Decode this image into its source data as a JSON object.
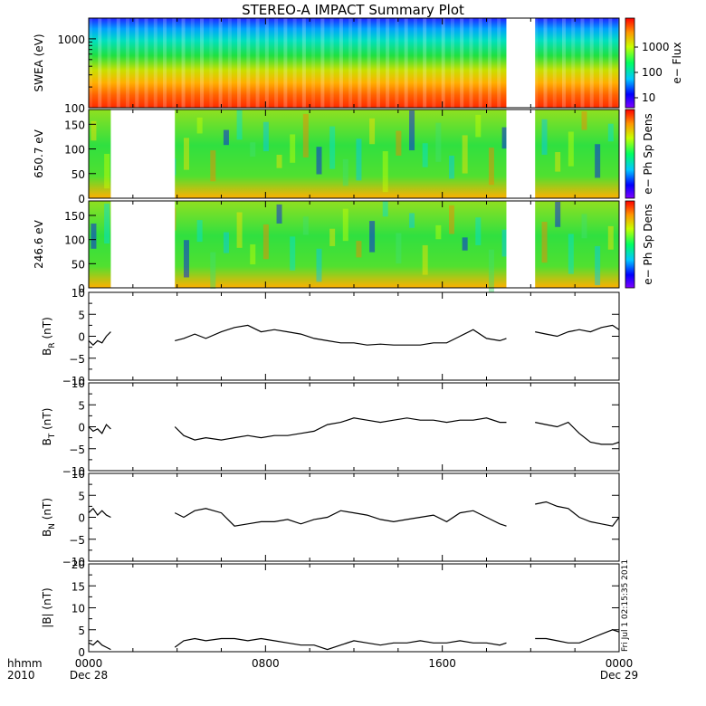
{
  "title": "STEREO-A IMPACT Summary Plot",
  "x_axis": {
    "corner_labels": [
      "hhmm",
      "2010"
    ],
    "tick_labels": [
      {
        "time": "0000",
        "date": "Dec 28"
      },
      {
        "time": "0800",
        "date": ""
      },
      {
        "time": "1600",
        "date": ""
      },
      {
        "time": "0000",
        "date": "Dec 29"
      }
    ]
  },
  "side_stamp": "Fri Jul 1 02:15:35 2011",
  "colors": {
    "line": "#000000",
    "gap": "#ffffff",
    "colormap": "rainbow"
  },
  "chart_data": [
    {
      "type": "heatmap",
      "ylabel": "SWEA (eV)",
      "yscale": "log",
      "ylim": [
        100,
        2000
      ],
      "yticks": [
        "100",
        "1000"
      ],
      "colorbar": {
        "label": "e− Flux",
        "scale": "log",
        "ticks": [
          "10",
          "100",
          "1000"
        ]
      },
      "time_range_hours": [
        0,
        24
      ],
      "data_gaps_hours": [
        [
          18.9,
          20.2
        ]
      ],
      "trend": "flux decreases with energy: ~3000 near 100 eV down to ~10 near 2000 eV"
    },
    {
      "type": "heatmap",
      "ylabel": "650.7 eV",
      "ylim": [
        0,
        180
      ],
      "yticks": [
        "0",
        "50",
        "100",
        "150"
      ],
      "colorbar": {
        "label": "e− Ph Sp Dens"
      },
      "time_range_hours": [
        0,
        24
      ],
      "data_gaps_hours": [
        [
          1.0,
          3.9
        ],
        [
          18.9,
          20.2
        ]
      ]
    },
    {
      "type": "heatmap",
      "ylabel": "246.6 eV",
      "ylim": [
        0,
        180
      ],
      "yticks": [
        "0",
        "50",
        "100",
        "150"
      ],
      "colorbar": {
        "label": "e− Ph Sp Dens"
      },
      "time_range_hours": [
        0,
        24
      ],
      "data_gaps_hours": [
        [
          1.0,
          3.9
        ],
        [
          18.9,
          20.2
        ]
      ]
    },
    {
      "type": "line",
      "ylabel": "B",
      "ylabel_sub": "R",
      "ylabel_unit": " (nT)",
      "ylim": [
        -10,
        10
      ],
      "yticks": [
        "−10",
        "−5",
        "0",
        "5",
        "10"
      ],
      "segments": [
        {
          "x": [
            0.0,
            0.2,
            0.4,
            0.6,
            0.8,
            1.0
          ],
          "y": [
            -1.0,
            -2.0,
            -1.0,
            -1.5,
            0.0,
            1.0
          ]
        },
        {
          "x": [
            3.9,
            4.3,
            4.8,
            5.3,
            6.0,
            6.6,
            7.2,
            7.8,
            8.4,
            9.0,
            9.6,
            10.2,
            10.8,
            11.4,
            12.0,
            12.6,
            13.2,
            13.8,
            14.4,
            15.0,
            15.6,
            16.2,
            16.8,
            17.4,
            18.0,
            18.6,
            18.9
          ],
          "y": [
            -1.0,
            -0.5,
            0.5,
            -0.5,
            1.0,
            2.0,
            2.5,
            1.0,
            1.5,
            1.0,
            0.5,
            -0.5,
            -1.0,
            -1.5,
            -1.5,
            -2.0,
            -1.8,
            -2.0,
            -2.0,
            -2.0,
            -1.5,
            -1.5,
            0.0,
            1.5,
            -0.5,
            -1.0,
            -0.5
          ]
        },
        {
          "x": [
            20.2,
            20.7,
            21.2,
            21.7,
            22.2,
            22.7,
            23.2,
            23.7,
            24.0
          ],
          "y": [
            1.0,
            0.5,
            0.0,
            1.0,
            1.5,
            1.0,
            2.0,
            2.5,
            1.5
          ]
        }
      ]
    },
    {
      "type": "line",
      "ylabel": "B",
      "ylabel_sub": "T",
      "ylabel_unit": " (nT)",
      "ylim": [
        -10,
        10
      ],
      "yticks": [
        "−10",
        "−5",
        "0",
        "5",
        "10"
      ],
      "segments": [
        {
          "x": [
            0.0,
            0.2,
            0.4,
            0.6,
            0.8,
            1.0
          ],
          "y": [
            0.0,
            -1.0,
            -0.5,
            -1.5,
            0.5,
            -0.5
          ]
        },
        {
          "x": [
            3.9,
            4.3,
            4.8,
            5.3,
            6.0,
            6.6,
            7.2,
            7.8,
            8.4,
            9.0,
            9.6,
            10.2,
            10.8,
            11.4,
            12.0,
            12.6,
            13.2,
            13.8,
            14.4,
            15.0,
            15.6,
            16.2,
            16.8,
            17.4,
            18.0,
            18.6,
            18.9
          ],
          "y": [
            0.0,
            -2.0,
            -3.0,
            -2.5,
            -3.0,
            -2.5,
            -2.0,
            -2.5,
            -2.0,
            -2.0,
            -1.5,
            -1.0,
            0.5,
            1.0,
            2.0,
            1.5,
            1.0,
            1.5,
            2.0,
            1.5,
            1.5,
            1.0,
            1.5,
            1.5,
            2.0,
            1.0,
            1.0
          ]
        },
        {
          "x": [
            20.2,
            20.7,
            21.2,
            21.7,
            22.2,
            22.7,
            23.2,
            23.7,
            24.0
          ],
          "y": [
            1.0,
            0.5,
            0.0,
            1.0,
            -1.5,
            -3.5,
            -4.0,
            -4.0,
            -3.5
          ]
        }
      ]
    },
    {
      "type": "line",
      "ylabel": "B",
      "ylabel_sub": "N",
      "ylabel_unit": " (nT)",
      "ylim": [
        -10,
        10
      ],
      "yticks": [
        "−10",
        "−5",
        "0",
        "5",
        "10"
      ],
      "segments": [
        {
          "x": [
            0.0,
            0.2,
            0.4,
            0.6,
            0.8,
            1.0
          ],
          "y": [
            1.0,
            2.0,
            0.5,
            1.5,
            0.5,
            0.0
          ]
        },
        {
          "x": [
            3.9,
            4.3,
            4.8,
            5.3,
            6.0,
            6.6,
            7.2,
            7.8,
            8.4,
            9.0,
            9.6,
            10.2,
            10.8,
            11.4,
            12.0,
            12.6,
            13.2,
            13.8,
            14.4,
            15.0,
            15.6,
            16.2,
            16.8,
            17.4,
            18.0,
            18.6,
            18.9
          ],
          "y": [
            1.0,
            0.0,
            1.5,
            2.0,
            1.0,
            -2.0,
            -1.5,
            -1.0,
            -1.0,
            -0.5,
            -1.5,
            -0.5,
            0.0,
            1.5,
            1.0,
            0.5,
            -0.5,
            -1.0,
            -0.5,
            0.0,
            0.5,
            -1.0,
            1.0,
            1.5,
            0.0,
            -1.5,
            -2.0
          ]
        },
        {
          "x": [
            20.2,
            20.7,
            21.2,
            21.7,
            22.2,
            22.7,
            23.2,
            23.7,
            24.0
          ],
          "y": [
            3.0,
            3.5,
            2.5,
            2.0,
            0.0,
            -1.0,
            -1.5,
            -2.0,
            0.0
          ]
        }
      ]
    },
    {
      "type": "line",
      "ylabel": "|B|",
      "ylabel_sub": "",
      "ylabel_unit": " (nT)",
      "ylim": [
        0,
        20
      ],
      "yticks": [
        "0",
        "5",
        "10",
        "15",
        "20"
      ],
      "segments": [
        {
          "x": [
            0.0,
            0.2,
            0.4,
            0.6,
            0.8,
            1.0
          ],
          "y": [
            2.0,
            1.5,
            2.5,
            1.5,
            1.0,
            0.5
          ]
        },
        {
          "x": [
            3.9,
            4.3,
            4.8,
            5.3,
            6.0,
            6.6,
            7.2,
            7.8,
            8.4,
            9.0,
            9.6,
            10.2,
            10.8,
            11.4,
            12.0,
            12.6,
            13.2,
            13.8,
            14.4,
            15.0,
            15.6,
            16.2,
            16.8,
            17.4,
            18.0,
            18.6,
            18.9
          ],
          "y": [
            1.0,
            2.5,
            3.0,
            2.5,
            3.0,
            3.0,
            2.5,
            3.0,
            2.5,
            2.0,
            1.5,
            1.5,
            0.5,
            1.5,
            2.5,
            2.0,
            1.5,
            2.0,
            2.0,
            2.5,
            2.0,
            2.0,
            2.5,
            2.0,
            2.0,
            1.5,
            2.0
          ]
        },
        {
          "x": [
            20.2,
            20.7,
            21.2,
            21.7,
            22.2,
            22.7,
            23.2,
            23.7,
            24.0
          ],
          "y": [
            3.0,
            3.0,
            2.5,
            2.0,
            2.0,
            3.0,
            4.0,
            5.0,
            4.5
          ]
        }
      ]
    }
  ]
}
